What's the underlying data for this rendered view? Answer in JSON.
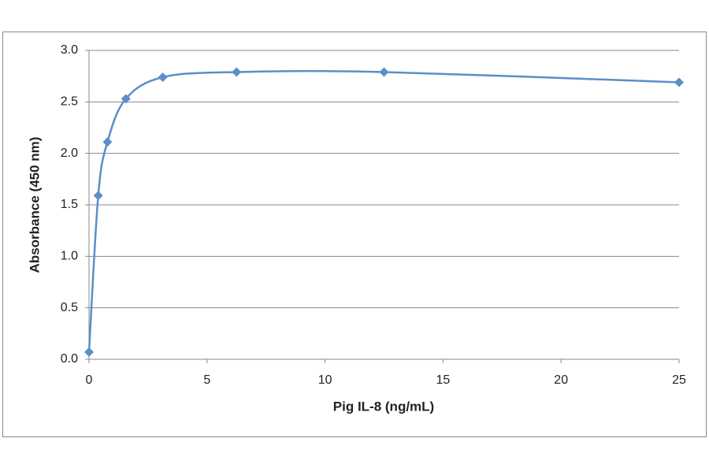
{
  "chart_data": {
    "type": "line",
    "x_label": "Pig IL-8 (ng/mL)",
    "y_label": "Absorbance  (450 nm)",
    "x": [
      0,
      0.39,
      0.78,
      1.56,
      3.125,
      6.25,
      12.5,
      25
    ],
    "values": [
      0.07,
      1.59,
      2.11,
      2.53,
      2.74,
      2.79,
      2.79,
      2.69
    ],
    "color": "#5b8fc7",
    "smooth": true,
    "xlim": [
      0,
      25
    ],
    "xticks": [
      0,
      5,
      10,
      15,
      20,
      25
    ],
    "ylim": [
      0,
      3
    ],
    "yticks": [
      {
        "value": 0,
        "label": "0.0"
      },
      {
        "value": 0.5,
        "label": "0.5"
      },
      {
        "value": 1,
        "label": "1.0"
      },
      {
        "value": 1.5,
        "label": "1.5"
      },
      {
        "value": 2,
        "label": "2.0"
      },
      {
        "value": 2.5,
        "label": "2.5"
      },
      {
        "value": 3,
        "label": "3.0"
      }
    ],
    "grid": true
  }
}
